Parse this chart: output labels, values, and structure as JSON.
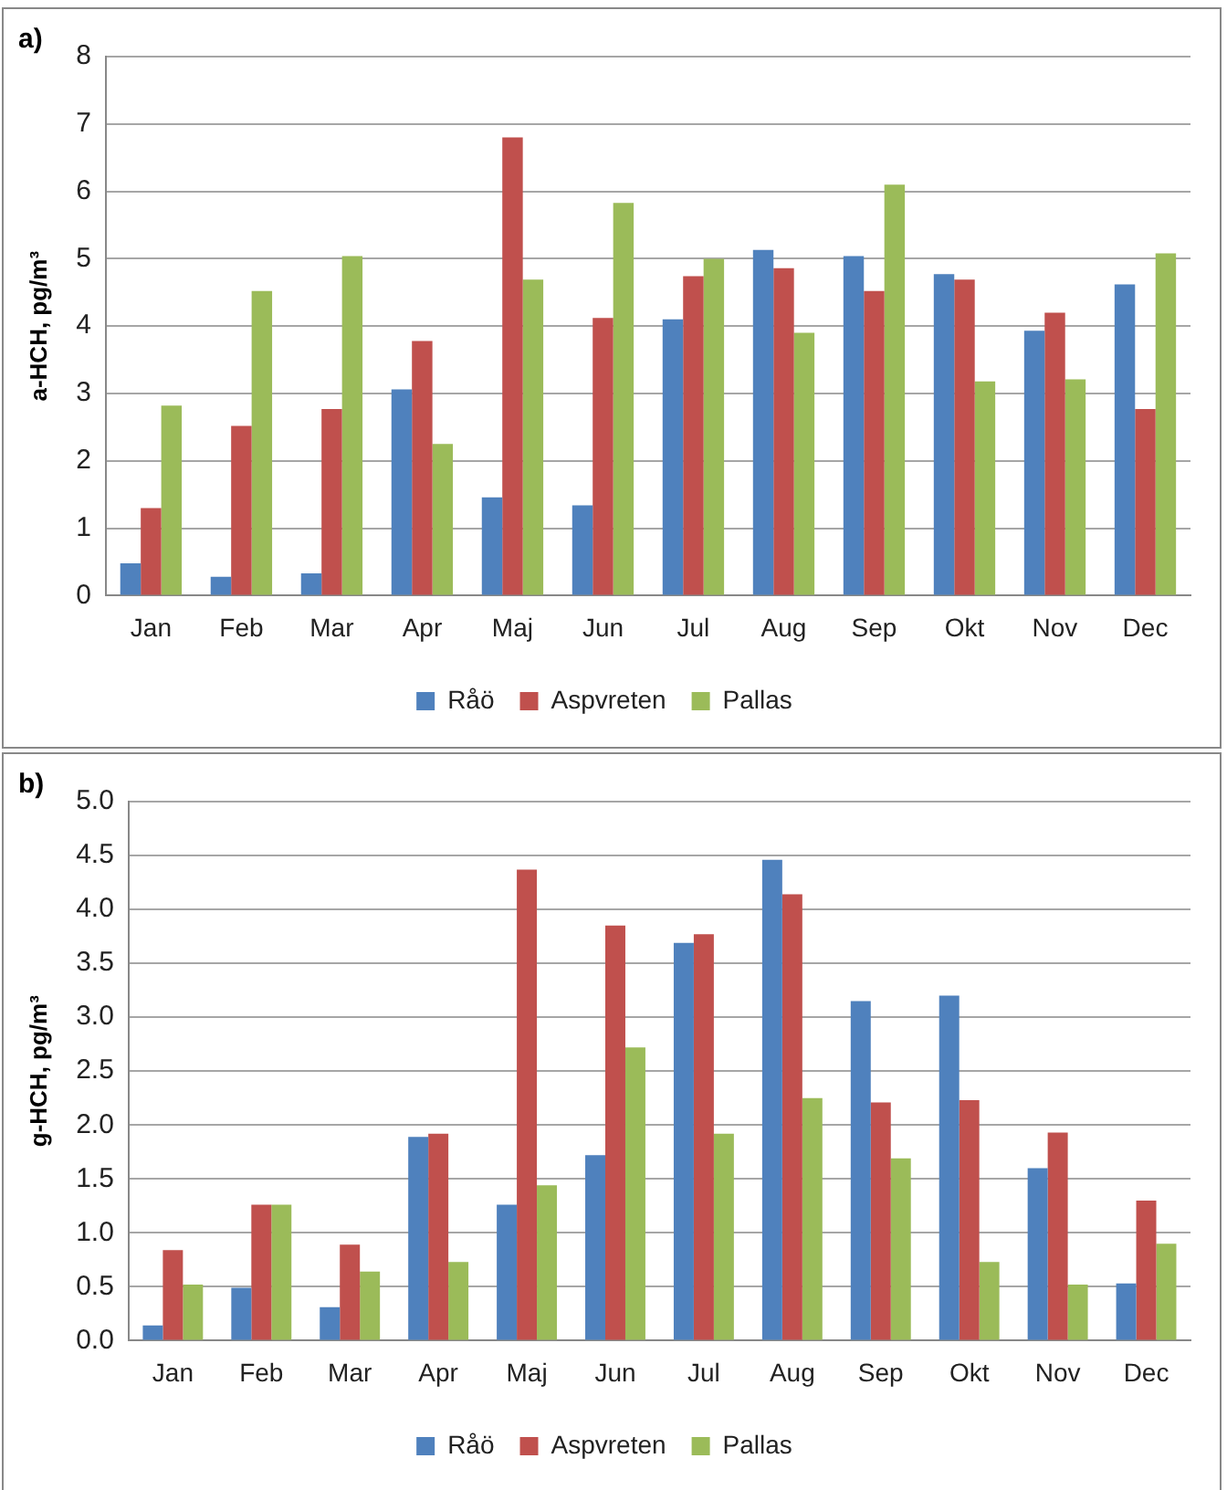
{
  "chart_data": [
    {
      "type": "bar",
      "title": "a)",
      "ylabel": "a-HCH, pg/m³",
      "categories": [
        "Jan",
        "Feb",
        "Mar",
        "Apr",
        "Maj",
        "Jun",
        "Jul",
        "Aug",
        "Sep",
        "Okt",
        "Nov",
        "Dec"
      ],
      "series": [
        {
          "name": "Råö",
          "color": "#4f81bd",
          "values": [
            0.48,
            0.28,
            0.33,
            3.06,
            1.46,
            1.34,
            4.1,
            5.13,
            5.04,
            4.77,
            3.93,
            4.62
          ]
        },
        {
          "name": "Aspvreten",
          "color": "#c0504d",
          "values": [
            1.3,
            2.52,
            2.77,
            3.78,
            6.8,
            4.12,
            4.74,
            4.86,
            4.52,
            4.69,
            4.2,
            2.77
          ]
        },
        {
          "name": "Pallas",
          "color": "#9bbb59",
          "values": [
            2.82,
            4.52,
            5.04,
            2.25,
            4.69,
            5.83,
            5.0,
            3.9,
            6.1,
            3.18,
            3.21,
            5.08
          ]
        }
      ],
      "ylim": [
        0,
        8
      ],
      "yticks": [
        0,
        1,
        2,
        3,
        4,
        5,
        6,
        7,
        8
      ],
      "grid": "y",
      "legend": "bottom"
    },
    {
      "type": "bar",
      "title": "b)",
      "ylabel": "g-HCH, pg/m³",
      "categories": [
        "Jan",
        "Feb",
        "Mar",
        "Apr",
        "Maj",
        "Jun",
        "Jul",
        "Aug",
        "Sep",
        "Okt",
        "Nov",
        "Dec"
      ],
      "series": [
        {
          "name": "Råö",
          "color": "#4f81bd",
          "values": [
            0.14,
            0.49,
            0.31,
            1.89,
            1.26,
            1.72,
            3.69,
            4.46,
            3.15,
            3.2,
            1.6,
            0.53
          ]
        },
        {
          "name": "Aspvreten",
          "color": "#c0504d",
          "values": [
            0.84,
            1.26,
            0.89,
            1.92,
            4.37,
            3.85,
            3.77,
            4.14,
            2.21,
            2.23,
            1.93,
            1.3
          ]
        },
        {
          "name": "Pallas",
          "color": "#9bbb59",
          "values": [
            0.52,
            1.26,
            0.64,
            0.73,
            1.44,
            2.72,
            1.92,
            2.25,
            1.69,
            0.73,
            0.52,
            0.9
          ]
        }
      ],
      "ylim": [
        0,
        5
      ],
      "yticks": [
        {
          "value": 0,
          "label": "0.0"
        },
        {
          "value": 0.5,
          "label": "0.5"
        },
        {
          "value": 1,
          "label": "1.0"
        },
        {
          "value": 1.5,
          "label": "1.5"
        },
        {
          "value": 2,
          "label": "2.0"
        },
        {
          "value": 2.5,
          "label": "2.5"
        },
        {
          "value": 3,
          "label": "3.0"
        },
        {
          "value": 3.5,
          "label": "3.5"
        },
        {
          "value": 4,
          "label": "4.0"
        },
        {
          "value": 4.5,
          "label": "4.5"
        },
        {
          "value": 5,
          "label": "5.0"
        }
      ],
      "grid": "y",
      "legend": "bottom"
    }
  ]
}
